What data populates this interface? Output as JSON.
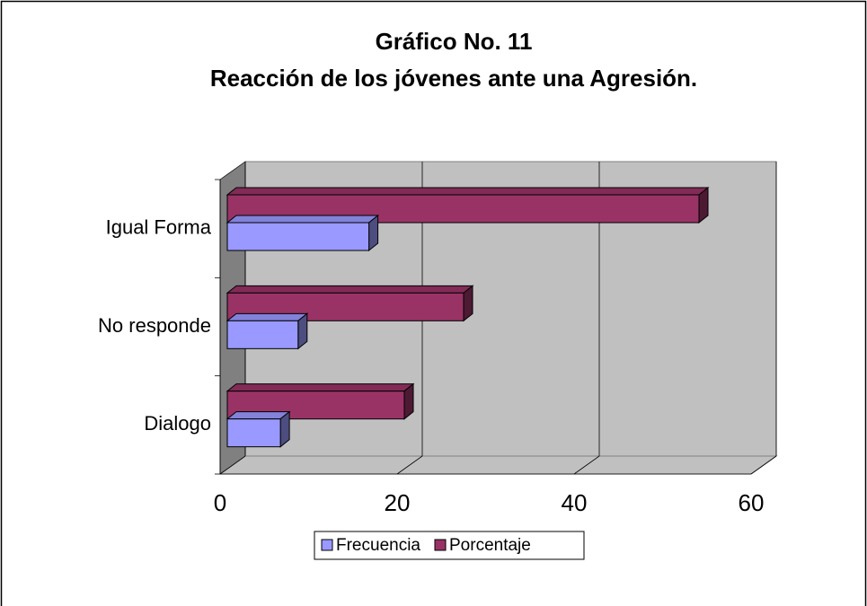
{
  "chart_data": {
    "type": "bar3d_horizontal",
    "title": "Gráfico No.  11",
    "subtitle": "Reacción de los jóvenes ante una Agresión.",
    "categories": [
      "Dialogo",
      "No responde",
      "Igual Forma"
    ],
    "series": [
      {
        "name": "Frecuencia",
        "color": "#9999ff",
        "values": [
          6,
          8,
          16
        ]
      },
      {
        "name": "Porcentaje",
        "color": "#993366",
        "values": [
          20,
          26.7,
          53.3
        ]
      }
    ],
    "xlim": [
      0,
      60
    ],
    "xticks": [
      0,
      20,
      40,
      60
    ],
    "grid": true,
    "legend": "bottom"
  }
}
